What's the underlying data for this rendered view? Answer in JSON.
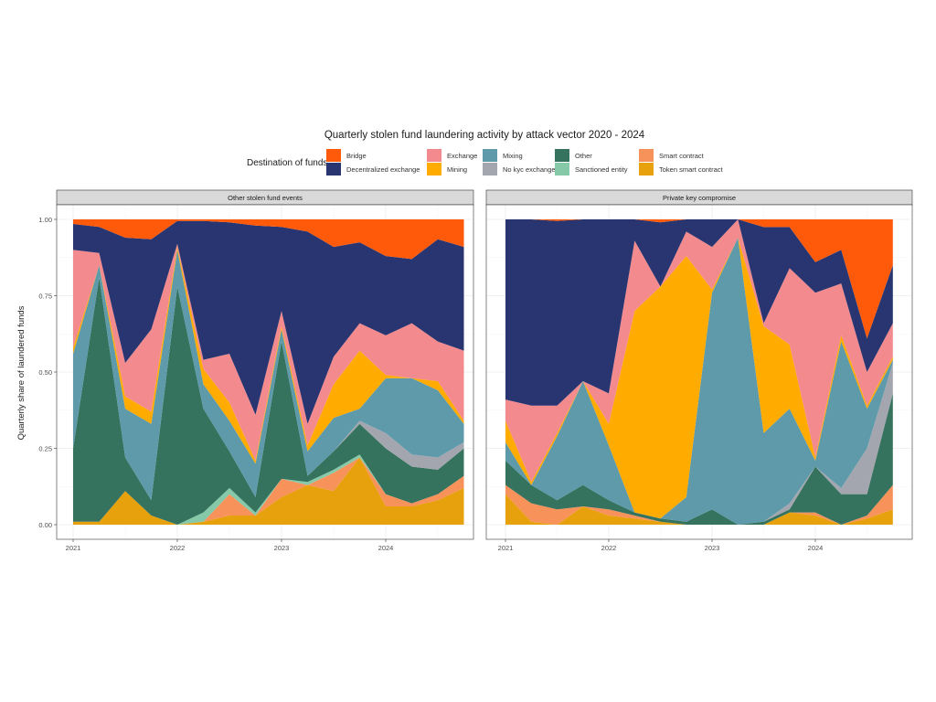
{
  "chart_data": {
    "type": "area",
    "stacked": true,
    "normalized": true,
    "title": "Quarterly stolen fund laundering activity by attack vector 2020 - 2024",
    "ylabel": "Quarterly share of laundered funds",
    "xlabel": "",
    "legend": {
      "title": "Destination of funds",
      "position": "top",
      "entries": [
        "Bridge",
        "Decentralized exchange",
        "Exchange",
        "Mining",
        "Mixing",
        "No kyc exchange",
        "Other",
        "Sanctioned entity",
        "Smart contract",
        "Token smart contract"
      ]
    },
    "colors": {
      "Bridge": "#ff5a0a",
      "Decentralized exchange": "#283570",
      "Exchange": "#f28a8e",
      "Mining": "#ffab00",
      "Mixing": "#5e9aaa",
      "No kyc exchange": "#a3a6ae",
      "Other": "#36735f",
      "Sanctioned entity": "#86c9a9",
      "Smart contract": "#f7925a",
      "Token smart contract": "#e6a10c"
    },
    "x": [
      2021.0,
      2021.25,
      2021.5,
      2021.75,
      2022.0,
      2022.25,
      2022.5,
      2022.75,
      2023.0,
      2023.25,
      2023.5,
      2023.75,
      2024.0,
      2024.25,
      2024.5,
      2024.75
    ],
    "xticks": [
      "2021",
      "2022",
      "2023",
      "2024"
    ],
    "xtick_values": [
      2021,
      2022,
      2023,
      2024
    ],
    "xlim": [
      2020.84,
      2024.86
    ],
    "yticks": [
      "0.00",
      "0.25",
      "0.50",
      "0.75",
      "1.00"
    ],
    "ytick_values": [
      0,
      0.25,
      0.5,
      0.75,
      1.0
    ],
    "ylim": [
      -0.04,
      1.04
    ],
    "grid": true,
    "stack_order_bottom_to_top": [
      "Token smart contract",
      "Smart contract",
      "Sanctioned entity",
      "Other",
      "No kyc exchange",
      "Mixing",
      "Mining",
      "Exchange",
      "Decentralized exchange",
      "Bridge"
    ],
    "panels": [
      {
        "label": "Other stolen fund events",
        "series": [
          {
            "name": "Token smart contract",
            "values": [
              0.01,
              0.01,
              0.11,
              0.03,
              0.0,
              0.01,
              0.03,
              0.03,
              0.09,
              0.13,
              0.11,
              0.22,
              0.06,
              0.06,
              0.08,
              0.12
            ]
          },
          {
            "name": "Smart contract",
            "values": [
              0.0,
              0.0,
              0.0,
              0.0,
              0.0,
              0.0,
              0.07,
              0.0,
              0.06,
              0.0,
              0.06,
              0.0,
              0.04,
              0.01,
              0.02,
              0.04
            ]
          },
          {
            "name": "Sanctioned entity",
            "values": [
              0.0,
              0.0,
              0.0,
              0.0,
              0.0,
              0.03,
              0.02,
              0.01,
              0.0,
              0.01,
              0.01,
              0.01,
              0.0,
              0.0,
              0.0,
              0.0
            ]
          },
          {
            "name": "Other",
            "values": [
              0.24,
              0.8,
              0.11,
              0.05,
              0.78,
              0.34,
              0.12,
              0.05,
              0.45,
              0.02,
              0.06,
              0.1,
              0.15,
              0.12,
              0.08,
              0.09
            ]
          },
          {
            "name": "No kyc exchange",
            "values": [
              0.0,
              0.0,
              0.0,
              0.0,
              0.0,
              0.0,
              0.0,
              0.0,
              0.0,
              0.0,
              0.0,
              0.01,
              0.05,
              0.04,
              0.04,
              0.02
            ]
          },
          {
            "name": "Mixing",
            "values": [
              0.31,
              0.04,
              0.16,
              0.25,
              0.12,
              0.08,
              0.1,
              0.11,
              0.04,
              0.08,
              0.11,
              0.04,
              0.18,
              0.25,
              0.22,
              0.06
            ]
          },
          {
            "name": "Mining",
            "values": [
              0.02,
              0.0,
              0.04,
              0.04,
              0.01,
              0.05,
              0.06,
              0.01,
              0.01,
              0.02,
              0.11,
              0.19,
              0.01,
              0.0,
              0.03,
              0.01
            ]
          },
          {
            "name": "Exchange",
            "values": [
              0.32,
              0.04,
              0.11,
              0.27,
              0.01,
              0.03,
              0.16,
              0.15,
              0.05,
              0.07,
              0.09,
              0.09,
              0.13,
              0.18,
              0.13,
              0.23
            ]
          },
          {
            "name": "Decentralized exchange",
            "values": [
              0.085,
              0.085,
              0.41,
              0.295,
              0.075,
              0.455,
              0.43,
              0.62,
              0.275,
              0.63,
              0.36,
              0.265,
              0.26,
              0.21,
              0.335,
              0.34
            ]
          },
          {
            "name": "Bridge",
            "values": [
              0.015,
              0.025,
              0.06,
              0.065,
              0.005,
              0.005,
              0.01,
              0.02,
              0.025,
              0.04,
              0.09,
              0.075,
              0.12,
              0.13,
              0.065,
              0.09
            ]
          }
        ]
      },
      {
        "label": "Private key compromise",
        "series": [
          {
            "name": "Token smart contract",
            "values": [
              0.1,
              0.01,
              0.0,
              0.06,
              0.03,
              0.02,
              0.01,
              0.0,
              0.0,
              0.0,
              0.0,
              0.04,
              0.03,
              0.0,
              0.02,
              0.05
            ]
          },
          {
            "name": "Smart contract",
            "values": [
              0.03,
              0.06,
              0.05,
              0.0,
              0.02,
              0.01,
              0.0,
              0.0,
              0.0,
              0.0,
              0.0,
              0.0,
              0.01,
              0.0,
              0.01,
              0.08
            ]
          },
          {
            "name": "Sanctioned entity",
            "values": [
              0.0,
              0.0,
              0.0,
              0.0,
              0.0,
              0.0,
              0.0,
              0.0,
              0.0,
              0.0,
              0.0,
              0.0,
              0.0,
              0.0,
              0.0,
              0.0
            ]
          },
          {
            "name": "Other",
            "values": [
              0.08,
              0.06,
              0.03,
              0.07,
              0.03,
              0.01,
              0.01,
              0.01,
              0.05,
              0.0,
              0.01,
              0.01,
              0.15,
              0.1,
              0.07,
              0.3
            ]
          },
          {
            "name": "No kyc exchange",
            "values": [
              0.0,
              0.0,
              0.0,
              0.0,
              0.0,
              0.0,
              0.0,
              0.0,
              0.0,
              0.0,
              0.0,
              0.02,
              0.0,
              0.02,
              0.15,
              0.1
            ]
          },
          {
            "name": "Mixing",
            "values": [
              0.06,
              0.0,
              0.21,
              0.34,
              0.18,
              0.0,
              0.0,
              0.08,
              0.71,
              0.94,
              0.29,
              0.31,
              0.02,
              0.48,
              0.13,
              0.01
            ]
          },
          {
            "name": "Mining",
            "values": [
              0.07,
              0.01,
              0.01,
              0.0,
              0.07,
              0.66,
              0.76,
              0.79,
              0.01,
              0.0,
              0.35,
              0.21,
              0.01,
              0.02,
              0.01,
              0.01
            ]
          },
          {
            "name": "Exchange",
            "values": [
              0.07,
              0.25,
              0.09,
              0.0,
              0.1,
              0.23,
              0.0,
              0.08,
              0.14,
              0.06,
              0.01,
              0.25,
              0.54,
              0.17,
              0.11,
              0.11
            ]
          },
          {
            "name": "Decentralized exchange",
            "values": [
              0.59,
              0.61,
              0.605,
              0.53,
              0.57,
              0.07,
              0.21,
              0.04,
              0.09,
              0.0,
              0.315,
              0.135,
              0.1,
              0.11,
              0.11,
              0.19
            ]
          },
          {
            "name": "Bridge",
            "values": [
              0.0,
              0.0,
              0.005,
              0.0,
              0.0,
              0.0,
              0.01,
              0.0,
              0.0,
              0.0,
              0.025,
              0.025,
              0.14,
              0.1,
              0.39,
              0.15
            ]
          }
        ]
      }
    ]
  }
}
